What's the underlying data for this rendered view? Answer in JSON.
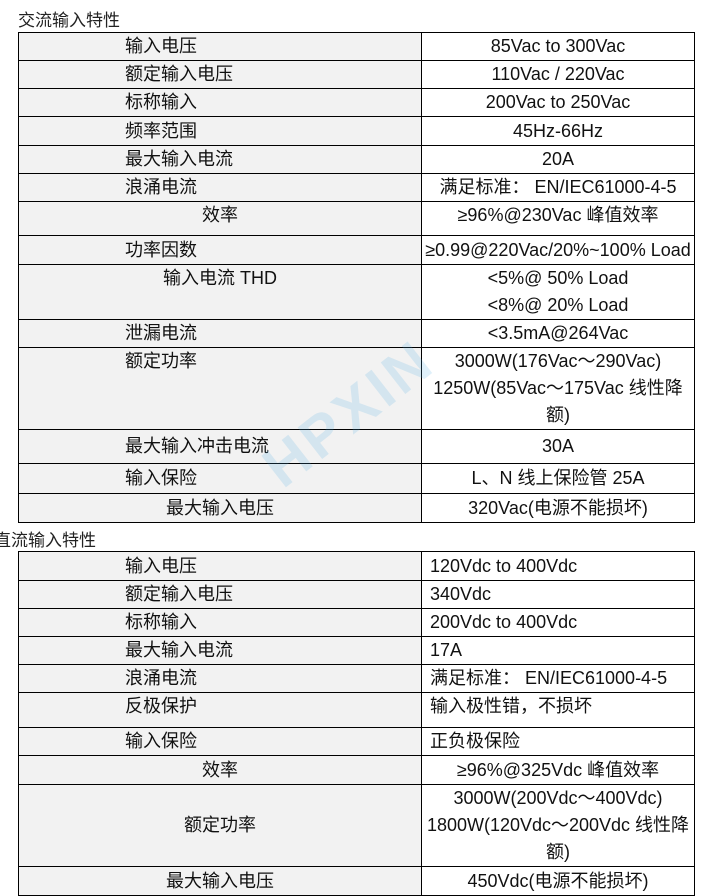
{
  "ac": {
    "title": "交流输入特性",
    "rows": [
      {
        "label": "输入电压",
        "value": [
          "85Vac to 300Vac"
        ]
      },
      {
        "label": "额定输入电压",
        "value": [
          "110Vac / 220Vac"
        ]
      },
      {
        "label": "标称输入",
        "value": [
          "200Vac to 250Vac"
        ]
      },
      {
        "label": "频率范围",
        "value": [
          "45Hz-66Hz"
        ]
      },
      {
        "label": "最大输入电流",
        "value": [
          "20A"
        ]
      },
      {
        "label": "浪涌电流",
        "value": [
          "满足标准：  EN/IEC61000-4-5"
        ]
      },
      {
        "label": "效率",
        "value": [
          "≥96%@230Vac 峰值效率"
        ]
      },
      {
        "label": "功率因数",
        "value": [
          "≥0.99@220Vac/20%~100% Load"
        ]
      },
      {
        "label": "输入电流 THD",
        "value": [
          "<5%@ 50% Load",
          "<8%@ 20% Load"
        ]
      },
      {
        "label": "泄漏电流",
        "value": [
          "<3.5mA@264Vac"
        ]
      },
      {
        "label": "额定功率",
        "value": [
          "3000W(176Vac～290Vac)",
          "1250W(85Vac～175Vac 线性降额)"
        ]
      },
      {
        "label": "最大输入冲击电流",
        "value": [
          "30A"
        ]
      },
      {
        "label": "输入保险",
        "value": [
          "L、N 线上保险管 25A"
        ]
      },
      {
        "label": "最大输入电压",
        "value": [
          "320Vac(电源不能损坏)"
        ]
      }
    ]
  },
  "dc": {
    "title": "直流输入特性",
    "rows": [
      {
        "label": "输入电压",
        "value": [
          "120Vdc to 400Vdc"
        ]
      },
      {
        "label": "额定输入电压",
        "value": [
          "340Vdc"
        ]
      },
      {
        "label": "标称输入",
        "value": [
          "200Vdc to 400Vdc"
        ]
      },
      {
        "label": "最大输入电流",
        "value": [
          "17A"
        ]
      },
      {
        "label": "浪涌电流",
        "value": [
          "满足标准：  EN/IEC61000-4-5"
        ]
      },
      {
        "label": "反极保护",
        "value": [
          "输入极性错，不损坏"
        ]
      },
      {
        "label": "输入保险",
        "value": [
          "正负极保险"
        ]
      },
      {
        "label": "效率",
        "value": [
          "≥96%@325Vdc 峰值效率"
        ]
      },
      {
        "label": "额定功率",
        "value": [
          "3000W(200Vdc～400Vdc)",
          "1800W(120Vdc～200Vdc 线性降额)"
        ]
      },
      {
        "label": "最大输入电压",
        "value": [
          "450Vdc(电源不能损坏)"
        ]
      }
    ]
  },
  "watermark": "HPXIN",
  "colors": {
    "label_bg": "#f2f2f2",
    "border": "#000000",
    "watermark": "#50aae6"
  }
}
